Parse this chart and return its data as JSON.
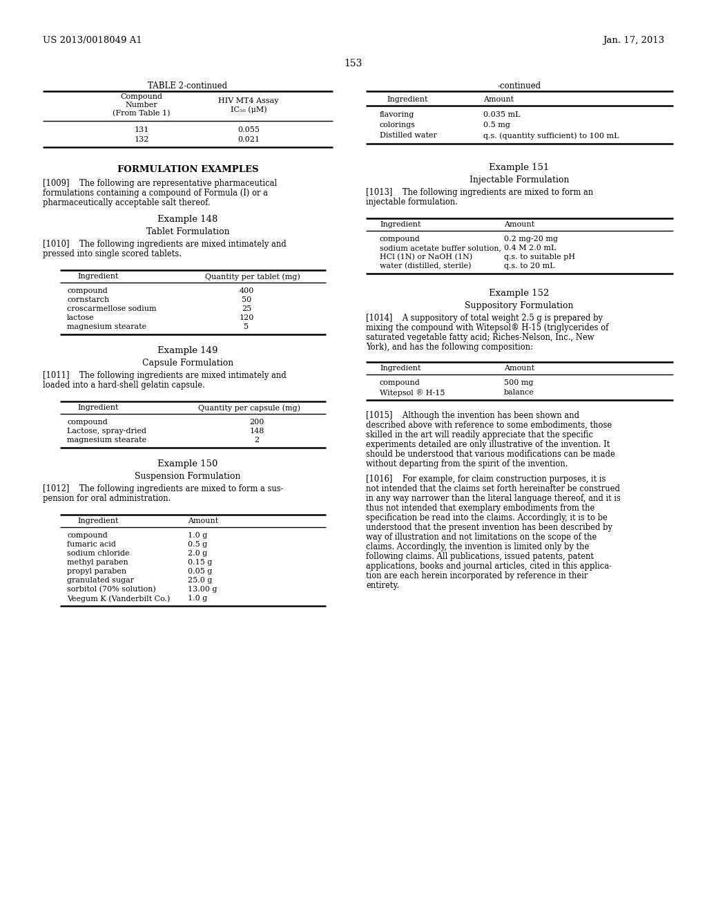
{
  "bg_color": "#ffffff",
  "header_left": "US 2013/0018049 A1",
  "header_right": "Jan. 17, 2013",
  "page_number": "153",
  "left_col": {
    "table2_title": "TABLE 2-continued",
    "table2_col1_header_lines": [
      "Compound",
      "Number",
      "(From Table 1)"
    ],
    "table2_col2_header_lines": [
      "HIV MT4 Assay",
      "IC₅₀ (μM)"
    ],
    "table2_col2_header_lines_display": [
      "HIV MT4 Assay",
      "IC50 (μM)"
    ],
    "table2_rows": [
      [
        "131",
        "0.055"
      ],
      [
        "132",
        "0.021"
      ]
    ],
    "formulation_header": "FORMULATION EXAMPLES",
    "para_1009": [
      "[1009]    The following are representative pharmaceutical",
      "formulations containing a compound of Formula (I) or a",
      "pharmaceutically acceptable salt thereof."
    ],
    "ex148_title": "Example 148",
    "ex148_subtitle": "Tablet Formulation",
    "para_1010": [
      "[1010]    The following ingredients are mixed intimately and",
      "pressed into single scored tablets."
    ],
    "table_tablet_col1": "Ingredient",
    "table_tablet_col2": "Quantity per tablet (mg)",
    "table_tablet_rows": [
      [
        "compound",
        "400"
      ],
      [
        "cornstarch",
        "50"
      ],
      [
        "croscarmellose sodium",
        "25"
      ],
      [
        "lactose",
        "120"
      ],
      [
        "magnesium stearate",
        "5"
      ]
    ],
    "ex149_title": "Example 149",
    "ex149_subtitle": "Capsule Formulation",
    "para_1011": [
      "[1011]    The following ingredients are mixed intimately and",
      "loaded into a hard-shell gelatin capsule."
    ],
    "table_capsule_col1": "Ingredient",
    "table_capsule_col2": "Quantity per capsule (mg)",
    "table_capsule_rows": [
      [
        "compound",
        "200"
      ],
      [
        "Lactose, spray-dried",
        "148"
      ],
      [
        "magnesium stearate",
        "2"
      ]
    ],
    "ex150_title": "Example 150",
    "ex150_subtitle": "Suspension Formulation",
    "para_1012": [
      "[1012]    The following ingredients are mixed to form a sus-",
      "pension for oral administration."
    ],
    "table_susp_col1": "Ingredient",
    "table_susp_col2": "Amount",
    "table_susp_rows": [
      [
        "compound",
        "1.0 g"
      ],
      [
        "fumaric acid",
        "0.5 g"
      ],
      [
        "sodium chloride",
        "2.0 g"
      ],
      [
        "methyl paraben",
        "0.15 g"
      ],
      [
        "propyl paraben",
        "0.05 g"
      ],
      [
        "granulated sugar",
        "25.0 g"
      ],
      [
        "sorbitol (70% solution)",
        "13.00 g"
      ],
      [
        "Veegum K (Vanderbilt Co.)",
        "1.0 g"
      ]
    ]
  },
  "right_col": {
    "table_cont_title": "-continued",
    "table_cont_col1": "Ingredient",
    "table_cont_col2": "Amount",
    "table_cont_rows": [
      [
        "flavoring",
        "0.035 mL"
      ],
      [
        "colorings",
        "0.5 mg"
      ],
      [
        "Distilled water",
        "q.s. (quantity sufficient) to 100 mL"
      ]
    ],
    "ex151_title": "Example 151",
    "ex151_subtitle": "Injectable Formulation",
    "para_1013": [
      "[1013]    The following ingredients are mixed to form an",
      "injectable formulation."
    ],
    "table_inj_col1": "Ingredient",
    "table_inj_col2": "Amount",
    "table_inj_left": [
      "compound",
      "sodium acetate buffer solution,",
      "HCl (1N) or NaOH (1N)",
      "water (distilled, sterile)"
    ],
    "table_inj_right": [
      "0.2 mg-20 mg",
      "0.4 M 2.0 mL",
      "q.s. to suitable pH",
      "q.s. to 20 mL"
    ],
    "ex152_title": "Example 152",
    "ex152_subtitle": "Suppository Formulation",
    "para_1014": [
      "[1014]    A suppository of total weight 2.5 g is prepared by",
      "mixing the compound with Witepsol® H-15 (triglycerides of",
      "saturated vegetable fatty acid; Riches-Nelson, Inc., New",
      "York), and has the following composition:"
    ],
    "table_supp_col1": "Ingredient",
    "table_supp_col2": "Amount",
    "table_supp_rows": [
      [
        "compound",
        "500 mg"
      ],
      [
        "Witepsol ® H-15",
        "balance"
      ]
    ],
    "para_1015": [
      "[1015]    Although the invention has been shown and",
      "described above with reference to some embodiments, those",
      "skilled in the art will readily appreciate that the specific",
      "experiments detailed are only illustrative of the invention. It",
      "should be understood that various modifications can be made",
      "without departing from the spirit of the invention."
    ],
    "para_1016": [
      "[1016]    For example, for claim construction purposes, it is",
      "not intended that the claims set forth hereinafter be construed",
      "in any way narrower than the literal language thereof, and it is",
      "thus not intended that exemplary embodiments from the",
      "specification be read into the claims. Accordingly, it is to be",
      "understood that the present invention has been described by",
      "way of illustration and not limitations on the scope of the",
      "claims. Accordingly, the invention is limited only by the",
      "following claims. All publications, issued patents, patent",
      "applications, books and journal articles, cited in this applica-",
      "tion are each herein incorporated by reference in their",
      "entirety."
    ]
  }
}
